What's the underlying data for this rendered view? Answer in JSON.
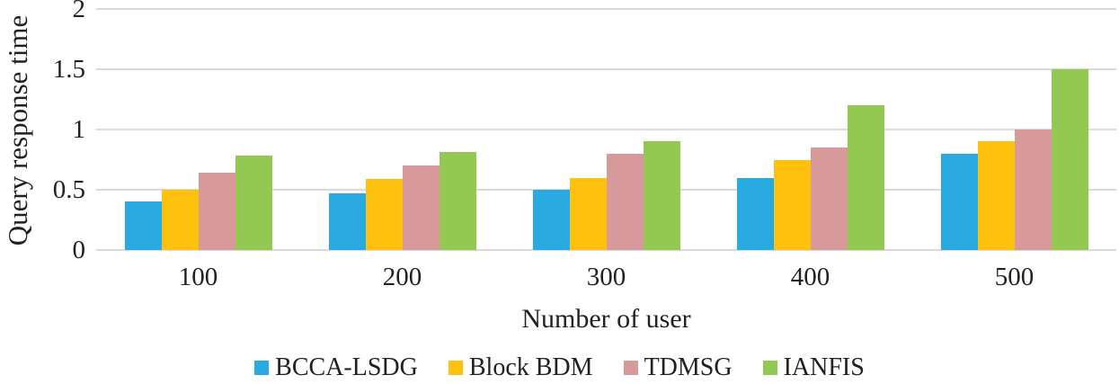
{
  "figure": {
    "background": "#FFFFFF",
    "text_color": "#212121"
  },
  "chart_data": {
    "type": "bar",
    "title": "",
    "xlabel": "Number of user",
    "ylabel": "Query response time",
    "categories": [
      "100",
      "200",
      "300",
      "400",
      "500"
    ],
    "series": [
      {
        "name": "BCCA-LSDG",
        "color": "#29ABE2",
        "values": [
          0.4,
          0.47,
          0.5,
          0.6,
          0.8
        ]
      },
      {
        "name": "Block BDM",
        "color": "#FEC10E",
        "values": [
          0.5,
          0.59,
          0.6,
          0.75,
          0.9
        ]
      },
      {
        "name": "TDMSG",
        "color": "#D8999B",
        "values": [
          0.64,
          0.7,
          0.8,
          0.85,
          1.0
        ]
      },
      {
        "name": "IANFIS",
        "color": "#93C953",
        "values": [
          0.78,
          0.81,
          0.9,
          1.2,
          1.5
        ]
      }
    ],
    "ylim": [
      0,
      2
    ],
    "yticks": [
      0,
      0.5,
      1,
      1.5,
      2
    ],
    "ytick_labels": [
      "0",
      "0.5",
      "1",
      "1.5",
      "2"
    ],
    "grid": "horizontal",
    "gridline_color": "#DADADA",
    "legend_position": "bottom"
  }
}
